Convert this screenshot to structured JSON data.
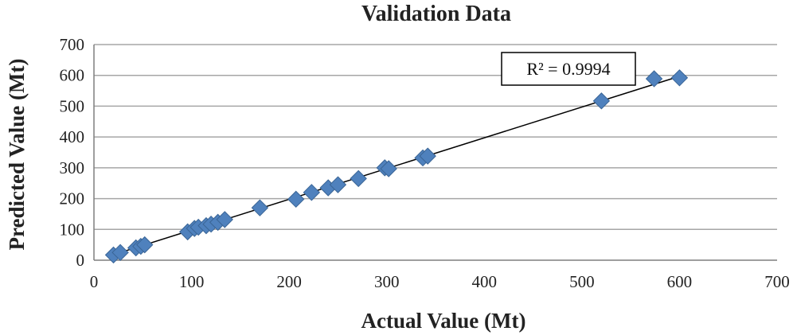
{
  "chart_data": {
    "type": "scatter",
    "title": "Validation Data",
    "xlabel": "Actual Value (Mt)",
    "ylabel": "Predicted Value (Mt)",
    "xlim": [
      0,
      700
    ],
    "ylim": [
      0,
      700
    ],
    "xticks": [
      0,
      100,
      200,
      300,
      400,
      500,
      600,
      700
    ],
    "yticks": [
      0,
      100,
      200,
      300,
      400,
      500,
      600,
      700
    ],
    "grid": "horizontal",
    "legend": "none",
    "marker": "diamond",
    "colors": {
      "marker": "#4f81bd",
      "marker_edge": "#3a6596",
      "trendline": "#000000",
      "grid": "#a6a6a6"
    },
    "series": [
      {
        "x": [
          20,
          27,
          43,
          48,
          52,
          96,
          103,
          107,
          115,
          120,
          127,
          134,
          170,
          207,
          223,
          240,
          250,
          271,
          298,
          302,
          337,
          342,
          520,
          574,
          600
        ],
        "y": [
          17,
          25,
          40,
          45,
          50,
          92,
          103,
          107,
          112,
          117,
          123,
          132,
          170,
          198,
          220,
          235,
          245,
          265,
          300,
          297,
          332,
          338,
          517,
          589,
          592
        ]
      }
    ],
    "trendline": {
      "type": "linear",
      "from": [
        20,
        18
      ],
      "to": [
        600,
        597
      ]
    },
    "annotation": "R² = 0.9994"
  }
}
